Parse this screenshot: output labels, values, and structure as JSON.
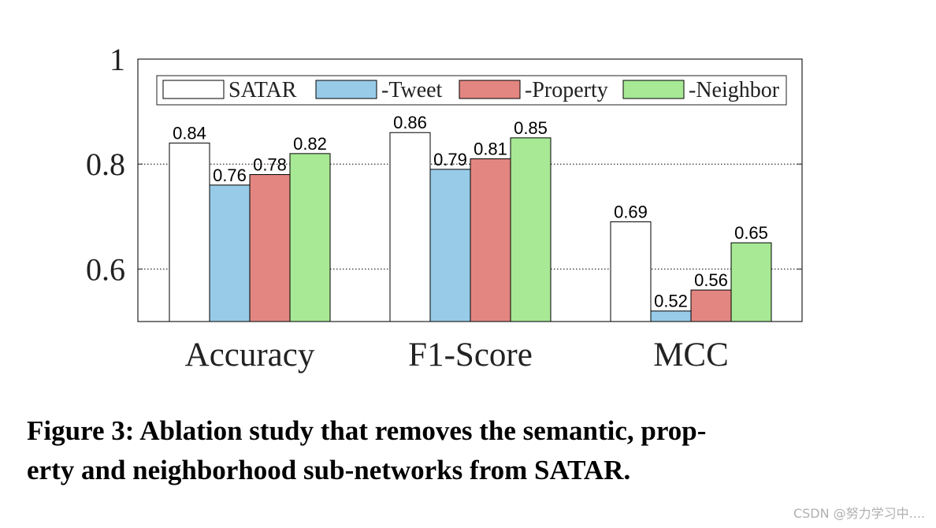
{
  "chart_data": {
    "type": "bar",
    "categories": [
      "Accuracy",
      "F1-Score",
      "MCC"
    ],
    "series": [
      {
        "name": "SATAR",
        "values": [
          0.84,
          0.86,
          0.69
        ],
        "color": "#ffffff"
      },
      {
        "name": "-Tweet",
        "values": [
          0.76,
          0.79,
          0.52
        ],
        "color": "#97cbe8"
      },
      {
        "name": "-Property",
        "values": [
          0.78,
          0.81,
          0.56
        ],
        "color": "#e38681"
      },
      {
        "name": "-Neighbor",
        "values": [
          0.82,
          0.85,
          0.65
        ],
        "color": "#a7e994"
      }
    ],
    "data_labels": [
      [
        "0.84",
        "0.86",
        "0.69"
      ],
      [
        "0.76",
        "0.79",
        "0.52"
      ],
      [
        "0.78",
        "0.81",
        "0.56"
      ],
      [
        "0.82",
        "0.85",
        "0.65"
      ]
    ],
    "yticks": [
      "0.6",
      "0.8",
      "1"
    ],
    "ytick_values": [
      0.6,
      0.8,
      1.0
    ],
    "ylim": [
      0.5,
      1.0
    ],
    "grid": "dotted horizontal at y ticks",
    "legend_position": "top, horizontal"
  },
  "caption": {
    "line1": "Figure 3: Ablation study that removes the semantic, prop-",
    "line2": "erty and neighborhood sub-networks from SATAR."
  },
  "watermark": "CSDN @努力学习中...."
}
